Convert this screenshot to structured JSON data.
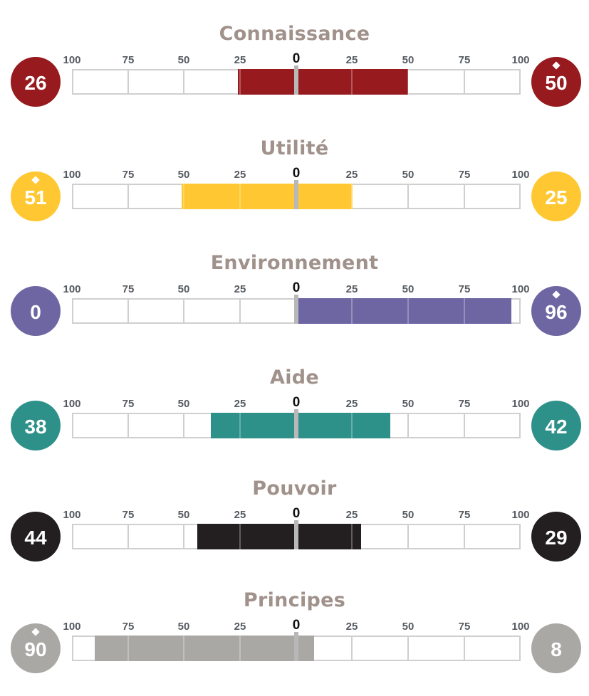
{
  "chart_data": {
    "type": "bar",
    "scale_ticks": [
      "100",
      "75",
      "50",
      "25",
      "0",
      "25",
      "50",
      "75",
      "100"
    ],
    "rows": [
      {
        "title": "Connaissance",
        "left": 26,
        "right": 50,
        "diamond": "right",
        "color": "#961a1e"
      },
      {
        "title": "Utilité",
        "left": 51,
        "right": 25,
        "diamond": "left",
        "color": "#ffc832"
      },
      {
        "title": "Environnement",
        "left": 0,
        "right": 96,
        "diamond": "right",
        "color": "#6e66a3"
      },
      {
        "title": "Aide",
        "left": 38,
        "right": 42,
        "diamond": "none",
        "color": "#2e9189"
      },
      {
        "title": "Pouvoir",
        "left": 44,
        "right": 29,
        "diamond": "none",
        "color": "#231f20"
      },
      {
        "title": "Principes",
        "left": 90,
        "right": 8,
        "diamond": "left",
        "color": "#aaa8a5"
      }
    ]
  }
}
